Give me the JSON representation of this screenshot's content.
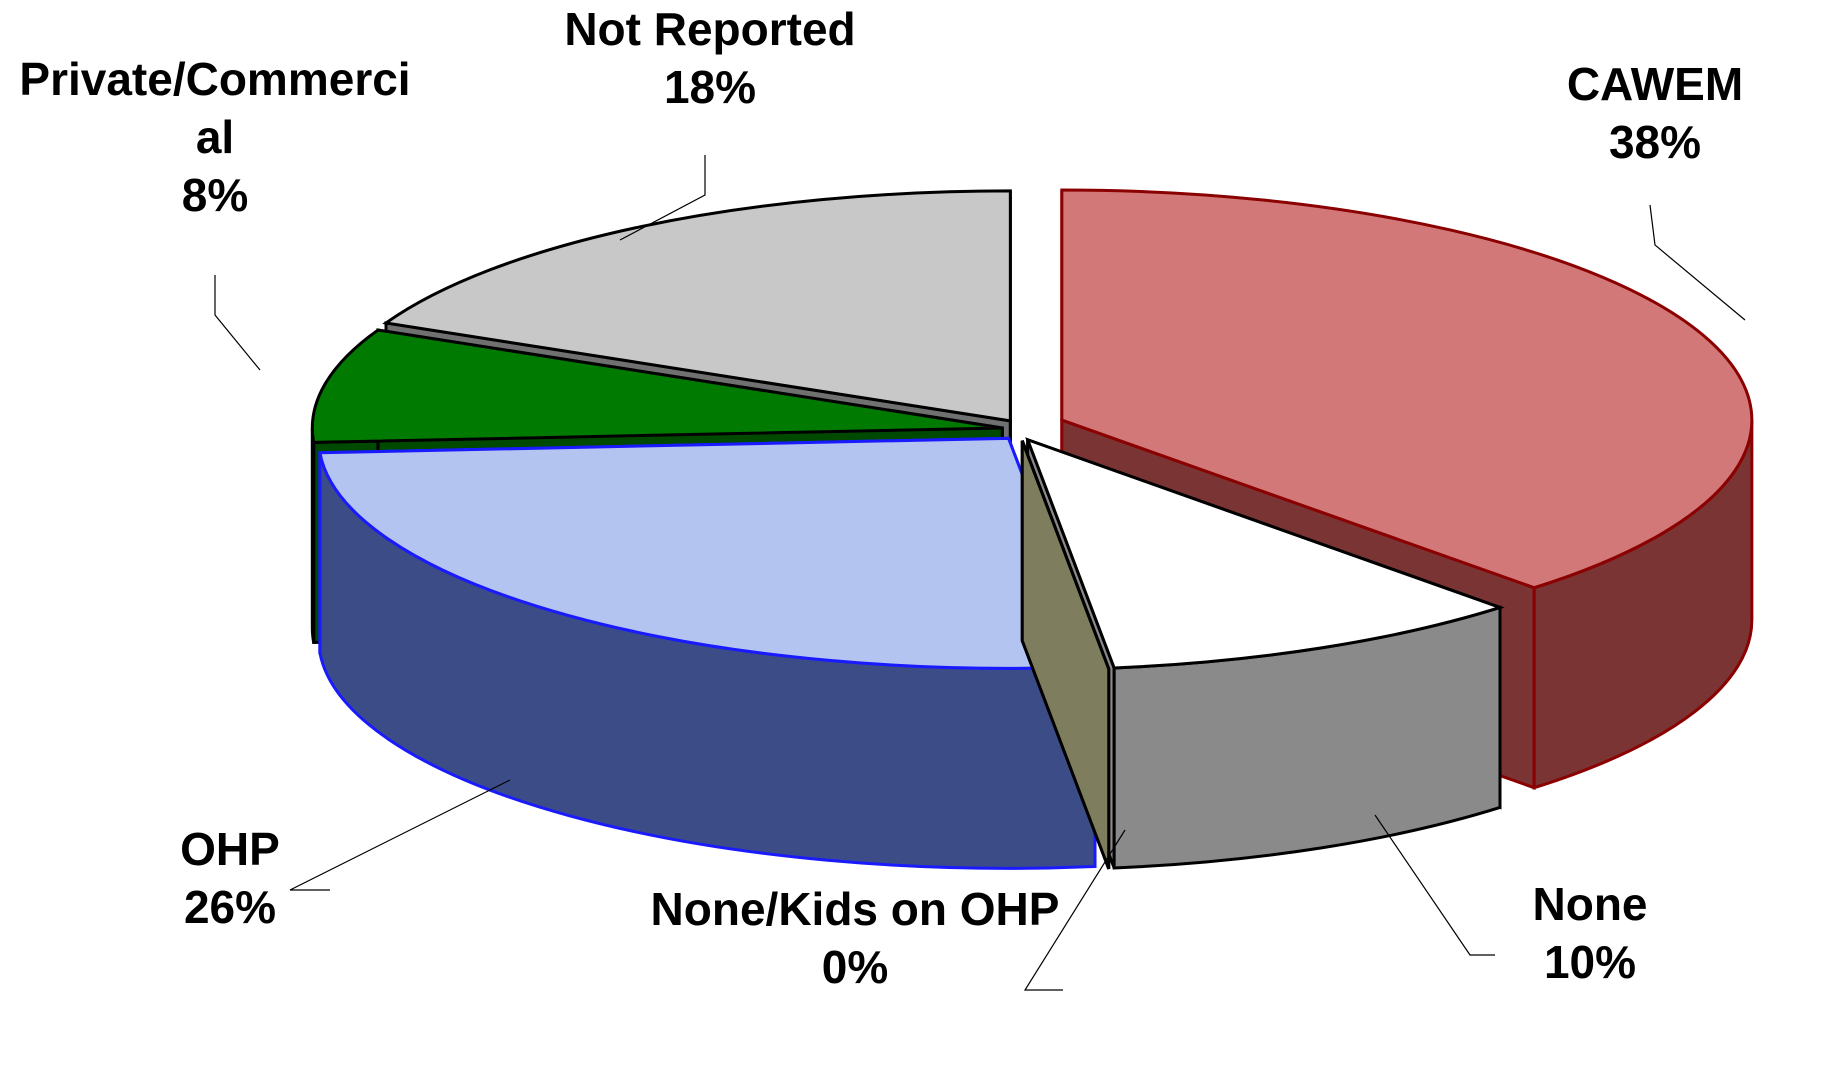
{
  "chart_data": {
    "type": "pie",
    "categories": [
      "CAWEM",
      "None",
      "None/Kids on OHP",
      "OHP",
      "Private/Commercial",
      "Not Reported"
    ],
    "values": [
      38,
      10,
      0,
      26,
      8,
      18
    ],
    "value_labels": [
      "38%",
      "10%",
      "0%",
      "26%",
      "8%",
      "18%"
    ],
    "colors": [
      "#d27878",
      "#ffffff",
      "#f0f0c8",
      "#b4c4f0",
      "#007a00",
      "#c8c8c8"
    ],
    "side_colors": [
      "#7a3434",
      "#8a8a8a",
      "#7e7e5e",
      "#3c4c86",
      "#004a00",
      "#707070"
    ],
    "edge_colors": [
      "#8b0000",
      "#000000",
      "#000000",
      "#1a1aff",
      "#000000",
      "#000000"
    ]
  }
}
